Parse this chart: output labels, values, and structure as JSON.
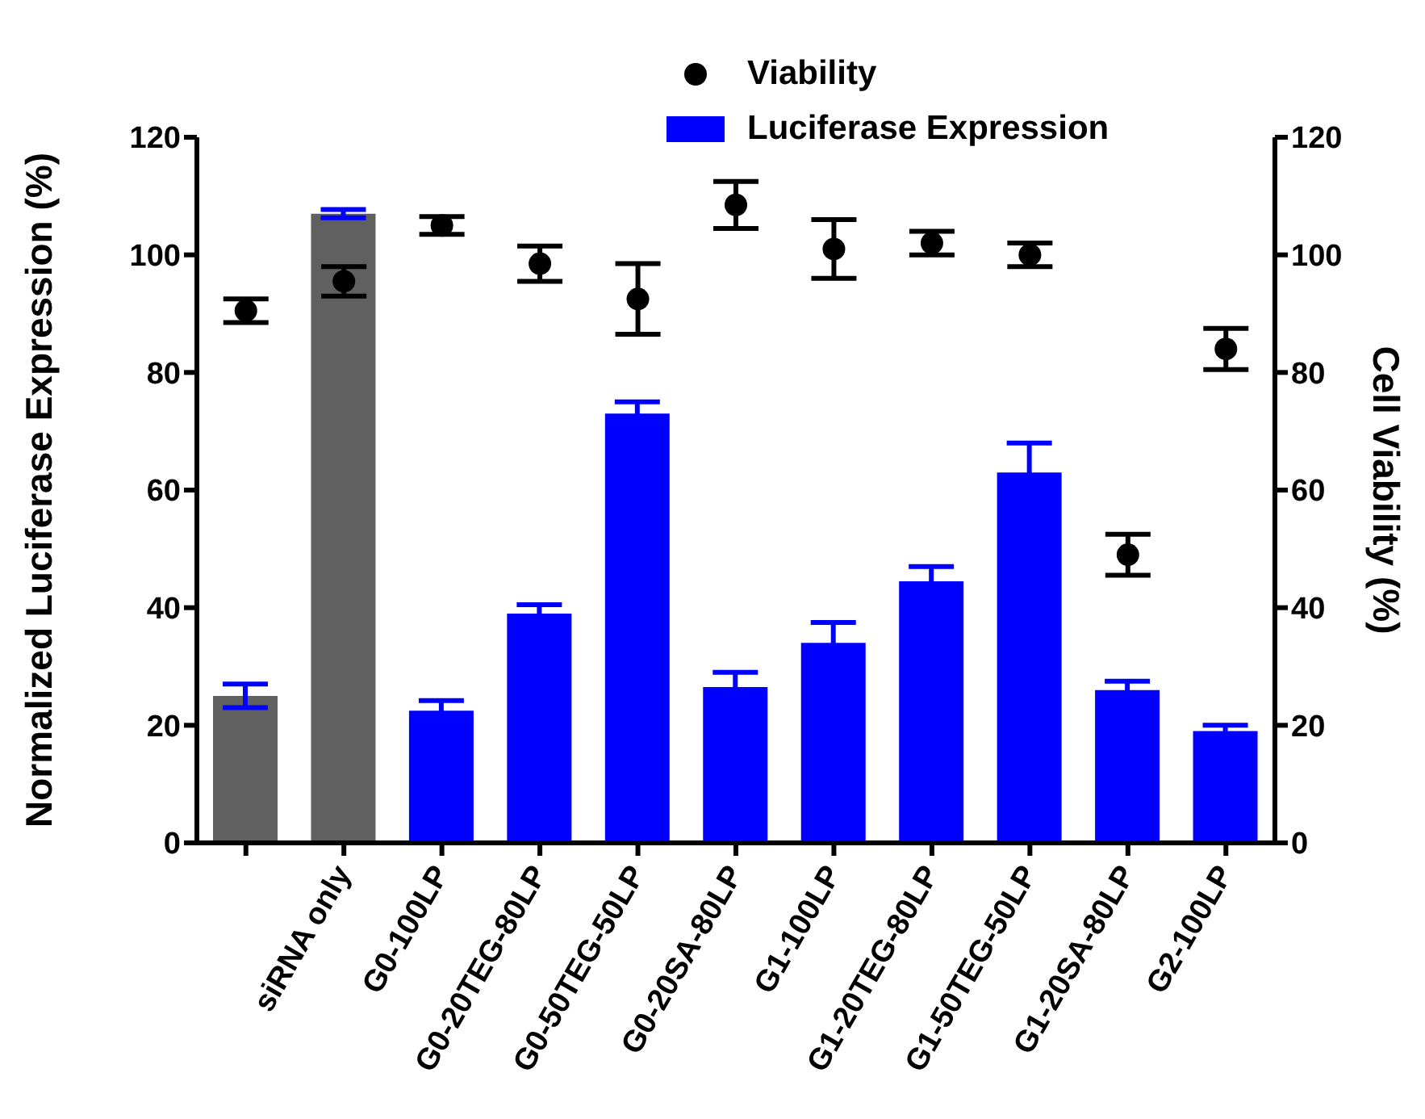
{
  "chart_data": {
    "type": "bar",
    "ylabel": "Normalized Luciferase Expression (%)",
    "y2label": "Cell Viability  (%)",
    "categories": [
      null,
      "siRNA only",
      "G0-100LP",
      "G0-20TEG-80LP",
      "G0-50TEG-50LP",
      "G0-20SA-80LP",
      "G1-100LP",
      "G1-20TEG-80LP",
      "G1-50TEG-50LP",
      "G1-20SA-80LP",
      "G2-100LP"
    ],
    "series": [
      {
        "name": "Luciferase Expression",
        "color": "#0000ff",
        "colors": [
          "#606060",
          "#606060",
          "#0000ff",
          "#0000ff",
          "#0000ff",
          "#0000ff",
          "#0000ff",
          "#0000ff",
          "#0000ff",
          "#0000ff",
          "#0000ff"
        ],
        "values": [
          25,
          107,
          22.5,
          39,
          73,
          26.5,
          34,
          44.5,
          63,
          26,
          19
        ],
        "errors": [
          2,
          0.7,
          1.7,
          1.5,
          2,
          2.5,
          3.5,
          2.5,
          5,
          1.5,
          1
        ]
      },
      {
        "name": "Viability",
        "type": "scatter",
        "axis": "y2",
        "color": "#000000",
        "marker": "circle",
        "values": [
          90.5,
          95.5,
          105,
          98.5,
          92.5,
          108.5,
          101,
          102,
          100,
          49,
          84
        ],
        "errors": [
          2,
          2.5,
          1.5,
          3,
          6,
          4,
          5,
          2,
          2,
          3.5,
          3.5
        ]
      }
    ],
    "ylim": [
      0,
      120
    ],
    "yticks": [
      0,
      20,
      40,
      60,
      80,
      100,
      120
    ],
    "y2lim": [
      0,
      120
    ],
    "y2ticks": [
      0,
      20,
      40,
      60,
      80,
      100,
      120
    ],
    "legend": "top right",
    "grid": false
  }
}
